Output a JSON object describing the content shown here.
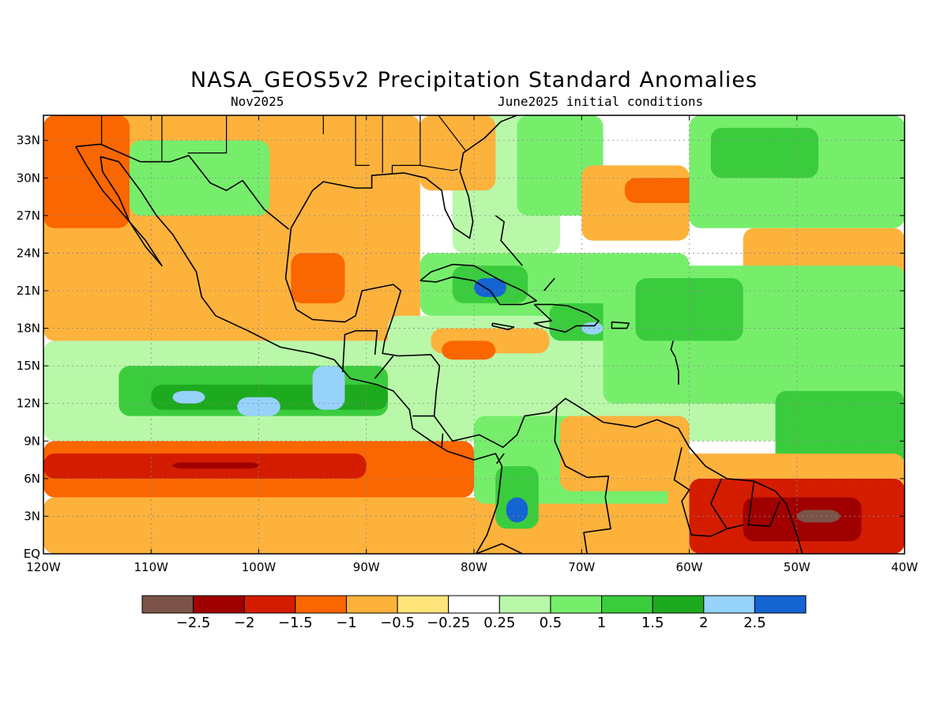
{
  "title": "NASA_GEOS5v2 Precipitation Standard Anomalies",
  "subtitle_left": "Nov2025",
  "subtitle_right": "June2025 initial conditions",
  "map": {
    "lon_range": [
      -120,
      -40
    ],
    "lat_range": [
      0,
      35
    ],
    "grid": "dotted",
    "lat_ticks": [
      {
        "value": 33,
        "label": "33N"
      },
      {
        "value": 30,
        "label": "30N"
      },
      {
        "value": 27,
        "label": "27N"
      },
      {
        "value": 24,
        "label": "24N"
      },
      {
        "value": 21,
        "label": "21N"
      },
      {
        "value": 18,
        "label": "18N"
      },
      {
        "value": 15,
        "label": "15N"
      },
      {
        "value": 12,
        "label": "12N"
      },
      {
        "value": 9,
        "label": "9N"
      },
      {
        "value": 6,
        "label": "6N"
      },
      {
        "value": 3,
        "label": "3N"
      },
      {
        "value": 0,
        "label": "EQ"
      }
    ],
    "lon_ticks": [
      {
        "value": -120,
        "label": "120W"
      },
      {
        "value": -110,
        "label": "110W"
      },
      {
        "value": -100,
        "label": "100W"
      },
      {
        "value": -90,
        "label": "90W"
      },
      {
        "value": -80,
        "label": "80W"
      },
      {
        "value": -70,
        "label": "70W"
      },
      {
        "value": -60,
        "label": "60W"
      },
      {
        "value": -50,
        "label": "50W"
      },
      {
        "value": -40,
        "label": "40W"
      }
    ]
  },
  "colorbar": {
    "colors": [
      "#7b5348",
      "#a00000",
      "#d41c00",
      "#fa6600",
      "#fdb23c",
      "#fee47a",
      "#ffffff",
      "#b9f8a9",
      "#76ee6c",
      "#3bcc3e",
      "#1eaa1e",
      "#96d2fa",
      "#1464d2"
    ],
    "labels": [
      "−2.5",
      "−2",
      "−1.5",
      "−1",
      "−0.5",
      "−0.25",
      "0.25",
      "0.5",
      "1",
      "1.5",
      "2",
      "2.5"
    ]
  },
  "anomaly_regions": [
    {
      "lon": [
        -120,
        -40
      ],
      "lat": [
        0,
        4.5
      ],
      "level": -0.5
    },
    {
      "lon": [
        -120,
        -80
      ],
      "lat": [
        4.5,
        9
      ],
      "level": -1
    },
    {
      "lon": [
        -120,
        -90
      ],
      "lat": [
        6,
        8
      ],
      "level": -1.5
    },
    {
      "lon": [
        -108,
        -100
      ],
      "lat": [
        6.8,
        7.3
      ],
      "level": -2
    },
    {
      "lon": [
        -120,
        -50
      ],
      "lat": [
        9,
        17
      ],
      "level": 0.25
    },
    {
      "lon": [
        -113,
        -88
      ],
      "lat": [
        11,
        15
      ],
      "level": 1
    },
    {
      "lon": [
        -110,
        -88
      ],
      "lat": [
        11.5,
        13.5
      ],
      "level": 1.5
    },
    {
      "lon": [
        -108,
        -105
      ],
      "lat": [
        12,
        13
      ],
      "level": 2
    },
    {
      "lon": [
        -102,
        -98
      ],
      "lat": [
        11,
        12.5
      ],
      "level": 2
    },
    {
      "lon": [
        -95,
        -92
      ],
      "lat": [
        11.5,
        15
      ],
      "level": 2
    },
    {
      "lon": [
        -120,
        -85
      ],
      "lat": [
        17,
        35
      ],
      "level": -0.5
    },
    {
      "lon": [
        -120,
        -112
      ],
      "lat": [
        26,
        35
      ],
      "level": -1
    },
    {
      "lon": [
        -97,
        -92
      ],
      "lat": [
        20,
        24
      ],
      "level": -1
    },
    {
      "lon": [
        -112,
        -99
      ],
      "lat": [
        27,
        33
      ],
      "level": 0.5
    },
    {
      "lon": [
        -88,
        -60
      ],
      "lat": [
        15,
        19
      ],
      "level": 0.25
    },
    {
      "lon": [
        -84,
        -73
      ],
      "lat": [
        16,
        18
      ],
      "level": -0.5
    },
    {
      "lon": [
        -83,
        -78
      ],
      "lat": [
        15.5,
        17
      ],
      "level": -1
    },
    {
      "lon": [
        -85,
        -60
      ],
      "lat": [
        19,
        24
      ],
      "level": 0.5
    },
    {
      "lon": [
        -82,
        -75
      ],
      "lat": [
        20,
        23
      ],
      "level": 1
    },
    {
      "lon": [
        -80,
        -77
      ],
      "lat": [
        20.5,
        22
      ],
      "level": 2.5
    },
    {
      "lon": [
        -73,
        -66
      ],
      "lat": [
        17,
        20
      ],
      "level": 1
    },
    {
      "lon": [
        -70,
        -68
      ],
      "lat": [
        17.5,
        18.5
      ],
      "level": 2
    },
    {
      "lon": [
        -82,
        -72
      ],
      "lat": [
        24,
        35
      ],
      "level": 0.25
    },
    {
      "lon": [
        -76,
        -68
      ],
      "lat": [
        27,
        35
      ],
      "level": 0.5
    },
    {
      "lon": [
        -85,
        -78
      ],
      "lat": [
        29,
        35
      ],
      "level": -0.5
    },
    {
      "lon": [
        -70,
        -60
      ],
      "lat": [
        25,
        31
      ],
      "level": -0.5
    },
    {
      "lon": [
        -66,
        -58
      ],
      "lat": [
        28,
        30
      ],
      "level": -1
    },
    {
      "lon": [
        -60,
        -40
      ],
      "lat": [
        26,
        35
      ],
      "level": 0.5
    },
    {
      "lon": [
        -58,
        -48
      ],
      "lat": [
        30,
        34
      ],
      "level": 1
    },
    {
      "lon": [
        -55,
        -40
      ],
      "lat": [
        21,
        26
      ],
      "level": -0.5
    },
    {
      "lon": [
        -68,
        -40
      ],
      "lat": [
        12,
        23
      ],
      "level": 0.5
    },
    {
      "lon": [
        -65,
        -55
      ],
      "lat": [
        17,
        22
      ],
      "level": 1
    },
    {
      "lon": [
        -52,
        -40
      ],
      "lat": [
        7,
        13
      ],
      "level": 1
    },
    {
      "lon": [
        -80,
        -60
      ],
      "lat": [
        4,
        11
      ],
      "level": 0.5
    },
    {
      "lon": [
        -78,
        -74
      ],
      "lat": [
        2,
        7
      ],
      "level": 1
    },
    {
      "lon": [
        -77,
        -75
      ],
      "lat": [
        2.5,
        4.5
      ],
      "level": 2.5
    },
    {
      "lon": [
        -72,
        -60
      ],
      "lat": [
        5,
        11
      ],
      "level": -0.5
    },
    {
      "lon": [
        -62,
        -40
      ],
      "lat": [
        0,
        8
      ],
      "level": -0.5
    },
    {
      "lon": [
        -60,
        -40
      ],
      "lat": [
        0,
        6
      ],
      "level": -1.5
    },
    {
      "lon": [
        -55,
        -44
      ],
      "lat": [
        1,
        4.5
      ],
      "level": -2
    },
    {
      "lon": [
        -50,
        -46
      ],
      "lat": [
        2.5,
        3.5
      ],
      "level": -2.5
    }
  ],
  "coastlines": [
    [
      [
        -117,
        32.5
      ],
      [
        -116,
        31
      ],
      [
        -114.5,
        29
      ],
      [
        -112.5,
        27
      ],
      [
        -110.5,
        25
      ],
      [
        -109,
        23
      ],
      [
        -110.5,
        24.5
      ],
      [
        -112,
        26.5
      ],
      [
        -113,
        28.5
      ],
      [
        -114.5,
        30.5
      ],
      [
        -114.7,
        31.7
      ]
    ],
    [
      [
        -114.7,
        31.7
      ],
      [
        -113,
        31.3
      ],
      [
        -111,
        29
      ],
      [
        -109.5,
        27
      ],
      [
        -108,
        25.5
      ],
      [
        -105.8,
        22.5
      ],
      [
        -105.3,
        20.5
      ],
      [
        -104,
        19
      ],
      [
        -101,
        17.8
      ],
      [
        -98,
        16.5
      ],
      [
        -95,
        16
      ],
      [
        -93,
        15.5
      ],
      [
        -91.5,
        14
      ],
      [
        -89,
        13.5
      ],
      [
        -87.5,
        13
      ],
      [
        -86,
        11.5
      ],
      [
        -85.7,
        10
      ],
      [
        -84,
        9
      ],
      [
        -82.5,
        8.2
      ],
      [
        -80,
        7.5
      ],
      [
        -78,
        8
      ],
      [
        -77.4,
        7
      ],
      [
        -77.8,
        4
      ],
      [
        -78.8,
        1.5
      ],
      [
        -79.8,
        0
      ]
    ],
    [
      [
        -97,
        26
      ],
      [
        -97.5,
        22
      ],
      [
        -96.5,
        19.5
      ],
      [
        -95,
        18.7
      ],
      [
        -92,
        18.5
      ],
      [
        -91,
        19
      ],
      [
        -90.4,
        21
      ],
      [
        -87.5,
        21.5
      ],
      [
        -86.8,
        21
      ],
      [
        -87.5,
        19
      ],
      [
        -88.3,
        17
      ],
      [
        -88.5,
        16
      ],
      [
        -87,
        15.8
      ],
      [
        -84,
        15.9
      ],
      [
        -83.2,
        15
      ],
      [
        -83.5,
        13
      ],
      [
        -83.7,
        11
      ],
      [
        -82,
        9
      ],
      [
        -79.5,
        9.5
      ],
      [
        -77.3,
        8.5
      ],
      [
        -76,
        9.5
      ],
      [
        -75.3,
        11
      ],
      [
        -73,
        11.3
      ],
      [
        -71.5,
        12.4
      ],
      [
        -70,
        11.6
      ],
      [
        -68,
        10.5
      ],
      [
        -65,
        10.1
      ],
      [
        -63,
        10.7
      ],
      [
        -61,
        10
      ],
      [
        -60,
        8.5
      ],
      [
        -58.5,
        7
      ],
      [
        -56.5,
        6
      ],
      [
        -54,
        5.8
      ],
      [
        -52,
        5
      ],
      [
        -51,
        4
      ],
      [
        -50,
        1.5
      ],
      [
        -49.5,
        0
      ]
    ],
    [
      [
        -97,
        26
      ],
      [
        -95,
        29
      ],
      [
        -94,
        29.7
      ],
      [
        -91,
        29.2
      ],
      [
        -89.5,
        29.2
      ],
      [
        -89.5,
        30.2
      ],
      [
        -86.5,
        30.4
      ],
      [
        -84.5,
        30
      ],
      [
        -83,
        29
      ],
      [
        -82.7,
        27.5
      ],
      [
        -81.8,
        26
      ],
      [
        -80.4,
        25.2
      ],
      [
        -80.1,
        26.5
      ],
      [
        -80.5,
        28.5
      ],
      [
        -81.3,
        30.5
      ],
      [
        -81,
        32
      ],
      [
        -79,
        33.2
      ],
      [
        -77.5,
        34.5
      ],
      [
        -76,
        35
      ]
    ],
    [
      [
        -85,
        21.8
      ],
      [
        -84,
        22.5
      ],
      [
        -82,
        23.1
      ],
      [
        -80,
        23
      ],
      [
        -77.5,
        21.8
      ],
      [
        -75.5,
        21
      ],
      [
        -74.2,
        20.2
      ],
      [
        -75.5,
        19.9
      ],
      [
        -77.6,
        19.9
      ],
      [
        -78.5,
        21
      ],
      [
        -80,
        21.8
      ],
      [
        -82,
        22.1
      ],
      [
        -83.5,
        21.7
      ],
      [
        -85,
        21.8
      ]
    ],
    [
      [
        -74.4,
        19.9
      ],
      [
        -72.7,
        19.9
      ],
      [
        -71.3,
        19.8
      ],
      [
        -69.5,
        19.2
      ],
      [
        -68.4,
        18.6
      ],
      [
        -68.8,
        18.2
      ],
      [
        -70.5,
        18.2
      ],
      [
        -71.5,
        17.7
      ],
      [
        -73.5,
        18.1
      ],
      [
        -74.4,
        18.4
      ],
      [
        -72.8,
        18.6
      ],
      [
        -74.4,
        19.9
      ]
    ],
    [
      [
        -78.3,
        18.4
      ],
      [
        -76.3,
        18.1
      ],
      [
        -76.8,
        17.9
      ],
      [
        -78.3,
        18.2
      ],
      [
        -78.3,
        18.4
      ]
    ],
    [
      [
        -67.2,
        18.5
      ],
      [
        -65.6,
        18.4
      ],
      [
        -65.8,
        18
      ],
      [
        -67.2,
        18
      ],
      [
        -67.2,
        18.5
      ]
    ],
    [
      [
        -78,
        27
      ],
      [
        -77.2,
        26.5
      ],
      [
        -77.5,
        25
      ],
      [
        -76.5,
        24
      ],
      [
        -75.5,
        23
      ]
    ],
    [
      [
        -73.5,
        21
      ],
      [
        -72.5,
        22
      ]
    ],
    [
      [
        -61.5,
        17
      ],
      [
        -61.7,
        16.3
      ],
      [
        -61.3,
        15.7
      ],
      [
        -61,
        14.6
      ],
      [
        -61,
        13.5
      ]
    ],
    [
      [
        -117,
        32.5
      ],
      [
        -114.7,
        32.7
      ],
      [
        -111,
        31.3
      ],
      [
        -108.2,
        31.3
      ],
      [
        -106.5,
        31.8
      ],
      [
        -104.5,
        29.6
      ],
      [
        -103,
        29
      ],
      [
        -101.5,
        29.8
      ],
      [
        -99.5,
        27.5
      ],
      [
        -97.2,
        25.9
      ]
    ],
    [
      [
        -92.2,
        14.5
      ],
      [
        -92,
        17.5
      ],
      [
        -91,
        17.8
      ],
      [
        -89,
        17.8
      ],
      [
        -89.2,
        15.9
      ]
    ],
    [
      [
        -89.2,
        14
      ],
      [
        -87.5,
        15.8
      ]
    ],
    [
      [
        -85.7,
        11
      ],
      [
        -83.7,
        11
      ]
    ],
    [
      [
        -83,
        8.5
      ],
      [
        -82.9,
        9.6
      ]
    ],
    [
      [
        -77.9,
        7.2
      ],
      [
        -77.2,
        8
      ]
    ],
    [
      [
        -72.3,
        11.8
      ],
      [
        -72.5,
        9
      ],
      [
        -71.5,
        7
      ],
      [
        -69.5,
        6.1
      ],
      [
        -67.5,
        6.2
      ],
      [
        -67.8,
        4.5
      ],
      [
        -67.3,
        2
      ],
      [
        -69.8,
        1.7
      ],
      [
        -69.5,
        0
      ]
    ],
    [
      [
        -79.8,
        0
      ],
      [
        -77.4,
        0.8
      ],
      [
        -75.5,
        0
      ]
    ],
    [
      [
        -60.7,
        8.5
      ],
      [
        -61.4,
        5.9
      ],
      [
        -60,
        5.1
      ],
      [
        -60.7,
        4.2
      ],
      [
        -59.8,
        1.5
      ],
      [
        -58,
        1.4
      ],
      [
        -56.5,
        2
      ]
    ],
    [
      [
        -57,
        6
      ],
      [
        -58,
        4
      ],
      [
        -56.5,
        2
      ],
      [
        -55,
        2.3
      ]
    ],
    [
      [
        -54,
        5.8
      ],
      [
        -54.5,
        2.3
      ],
      [
        -52.5,
        2.2
      ],
      [
        -51.6,
        4.2
      ]
    ]
  ],
  "borders_us": [
    [
      [
        -114.6,
        35
      ],
      [
        -114.6,
        32.7
      ]
    ],
    [
      [
        -109,
        35
      ],
      [
        -109,
        31.3
      ]
    ],
    [
      [
        -103,
        35
      ],
      [
        -103,
        32
      ],
      [
        -106.6,
        32
      ]
    ],
    [
      [
        -94,
        35
      ],
      [
        -94,
        33.5
      ]
    ],
    [
      [
        -91,
        35
      ],
      [
        -91,
        31
      ],
      [
        -89.7,
        31
      ]
    ],
    [
      [
        -88.5,
        35
      ],
      [
        -88.5,
        30.4
      ]
    ],
    [
      [
        -85,
        35
      ],
      [
        -85,
        31
      ],
      [
        -87.6,
        31
      ],
      [
        -87.6,
        30.3
      ]
    ],
    [
      [
        -85,
        31
      ],
      [
        -82,
        30.6
      ],
      [
        -81.5,
        30.7
      ]
    ],
    [
      [
        -83.3,
        35
      ],
      [
        -80.8,
        32.2
      ]
    ]
  ]
}
